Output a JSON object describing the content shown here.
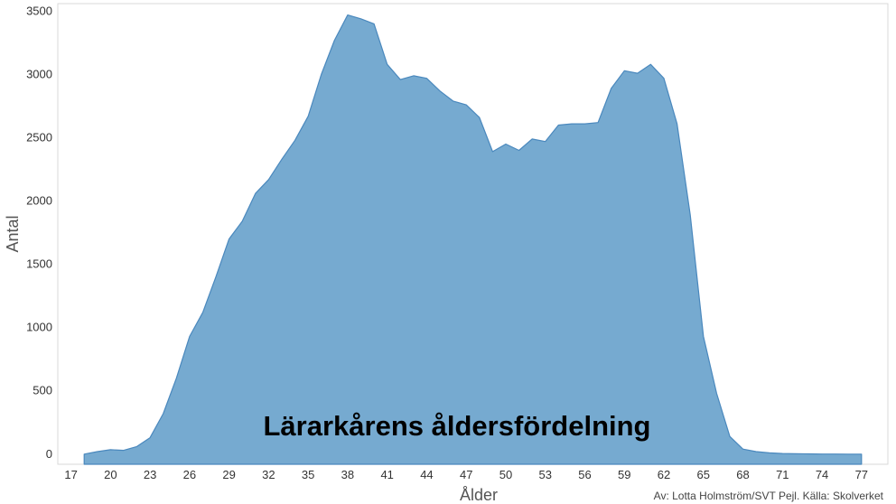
{
  "chart_data": {
    "type": "area",
    "title": "Lärarkårens åldersfördelning",
    "xlabel": "Ålder",
    "ylabel": "Antal",
    "xlim": [
      16,
      79
    ],
    "ylim": [
      -80,
      3560
    ],
    "x_ticks": [
      17,
      20,
      23,
      26,
      29,
      32,
      35,
      38,
      41,
      44,
      47,
      50,
      53,
      56,
      59,
      62,
      65,
      68,
      71,
      74,
      77
    ],
    "y_ticks": [
      0,
      500,
      1000,
      1500,
      2000,
      2500,
      3000,
      3500
    ],
    "grid": false,
    "color": "#76aad0",
    "edge_color": "#4a88bd",
    "credit": "Av: Lotta Holmström/SVT Pejl. Källa: Skolverket",
    "x": [
      18,
      19,
      20,
      21,
      22,
      23,
      24,
      25,
      26,
      27,
      28,
      29,
      30,
      31,
      32,
      33,
      34,
      35,
      36,
      37,
      38,
      39,
      40,
      41,
      42,
      43,
      44,
      45,
      46,
      47,
      48,
      49,
      50,
      51,
      52,
      53,
      54,
      55,
      56,
      57,
      58,
      59,
      60,
      61,
      62,
      63,
      64,
      65,
      66,
      67,
      68,
      69,
      70,
      71,
      72,
      73,
      74,
      75,
      76,
      77
    ],
    "values": [
      0,
      20,
      35,
      30,
      60,
      130,
      320,
      600,
      930,
      1120,
      1400,
      1700,
      1840,
      2060,
      2170,
      2330,
      2480,
      2670,
      3000,
      3270,
      3470,
      3440,
      3400,
      3080,
      2960,
      2990,
      2970,
      2870,
      2790,
      2760,
      2660,
      2390,
      2450,
      2400,
      2490,
      2470,
      2600,
      2610,
      2610,
      2620,
      2890,
      3030,
      3010,
      3080,
      2970,
      2610,
      1890,
      930,
      480,
      140,
      40,
      20,
      10,
      5,
      3,
      2,
      1,
      1,
      0,
      0
    ]
  }
}
